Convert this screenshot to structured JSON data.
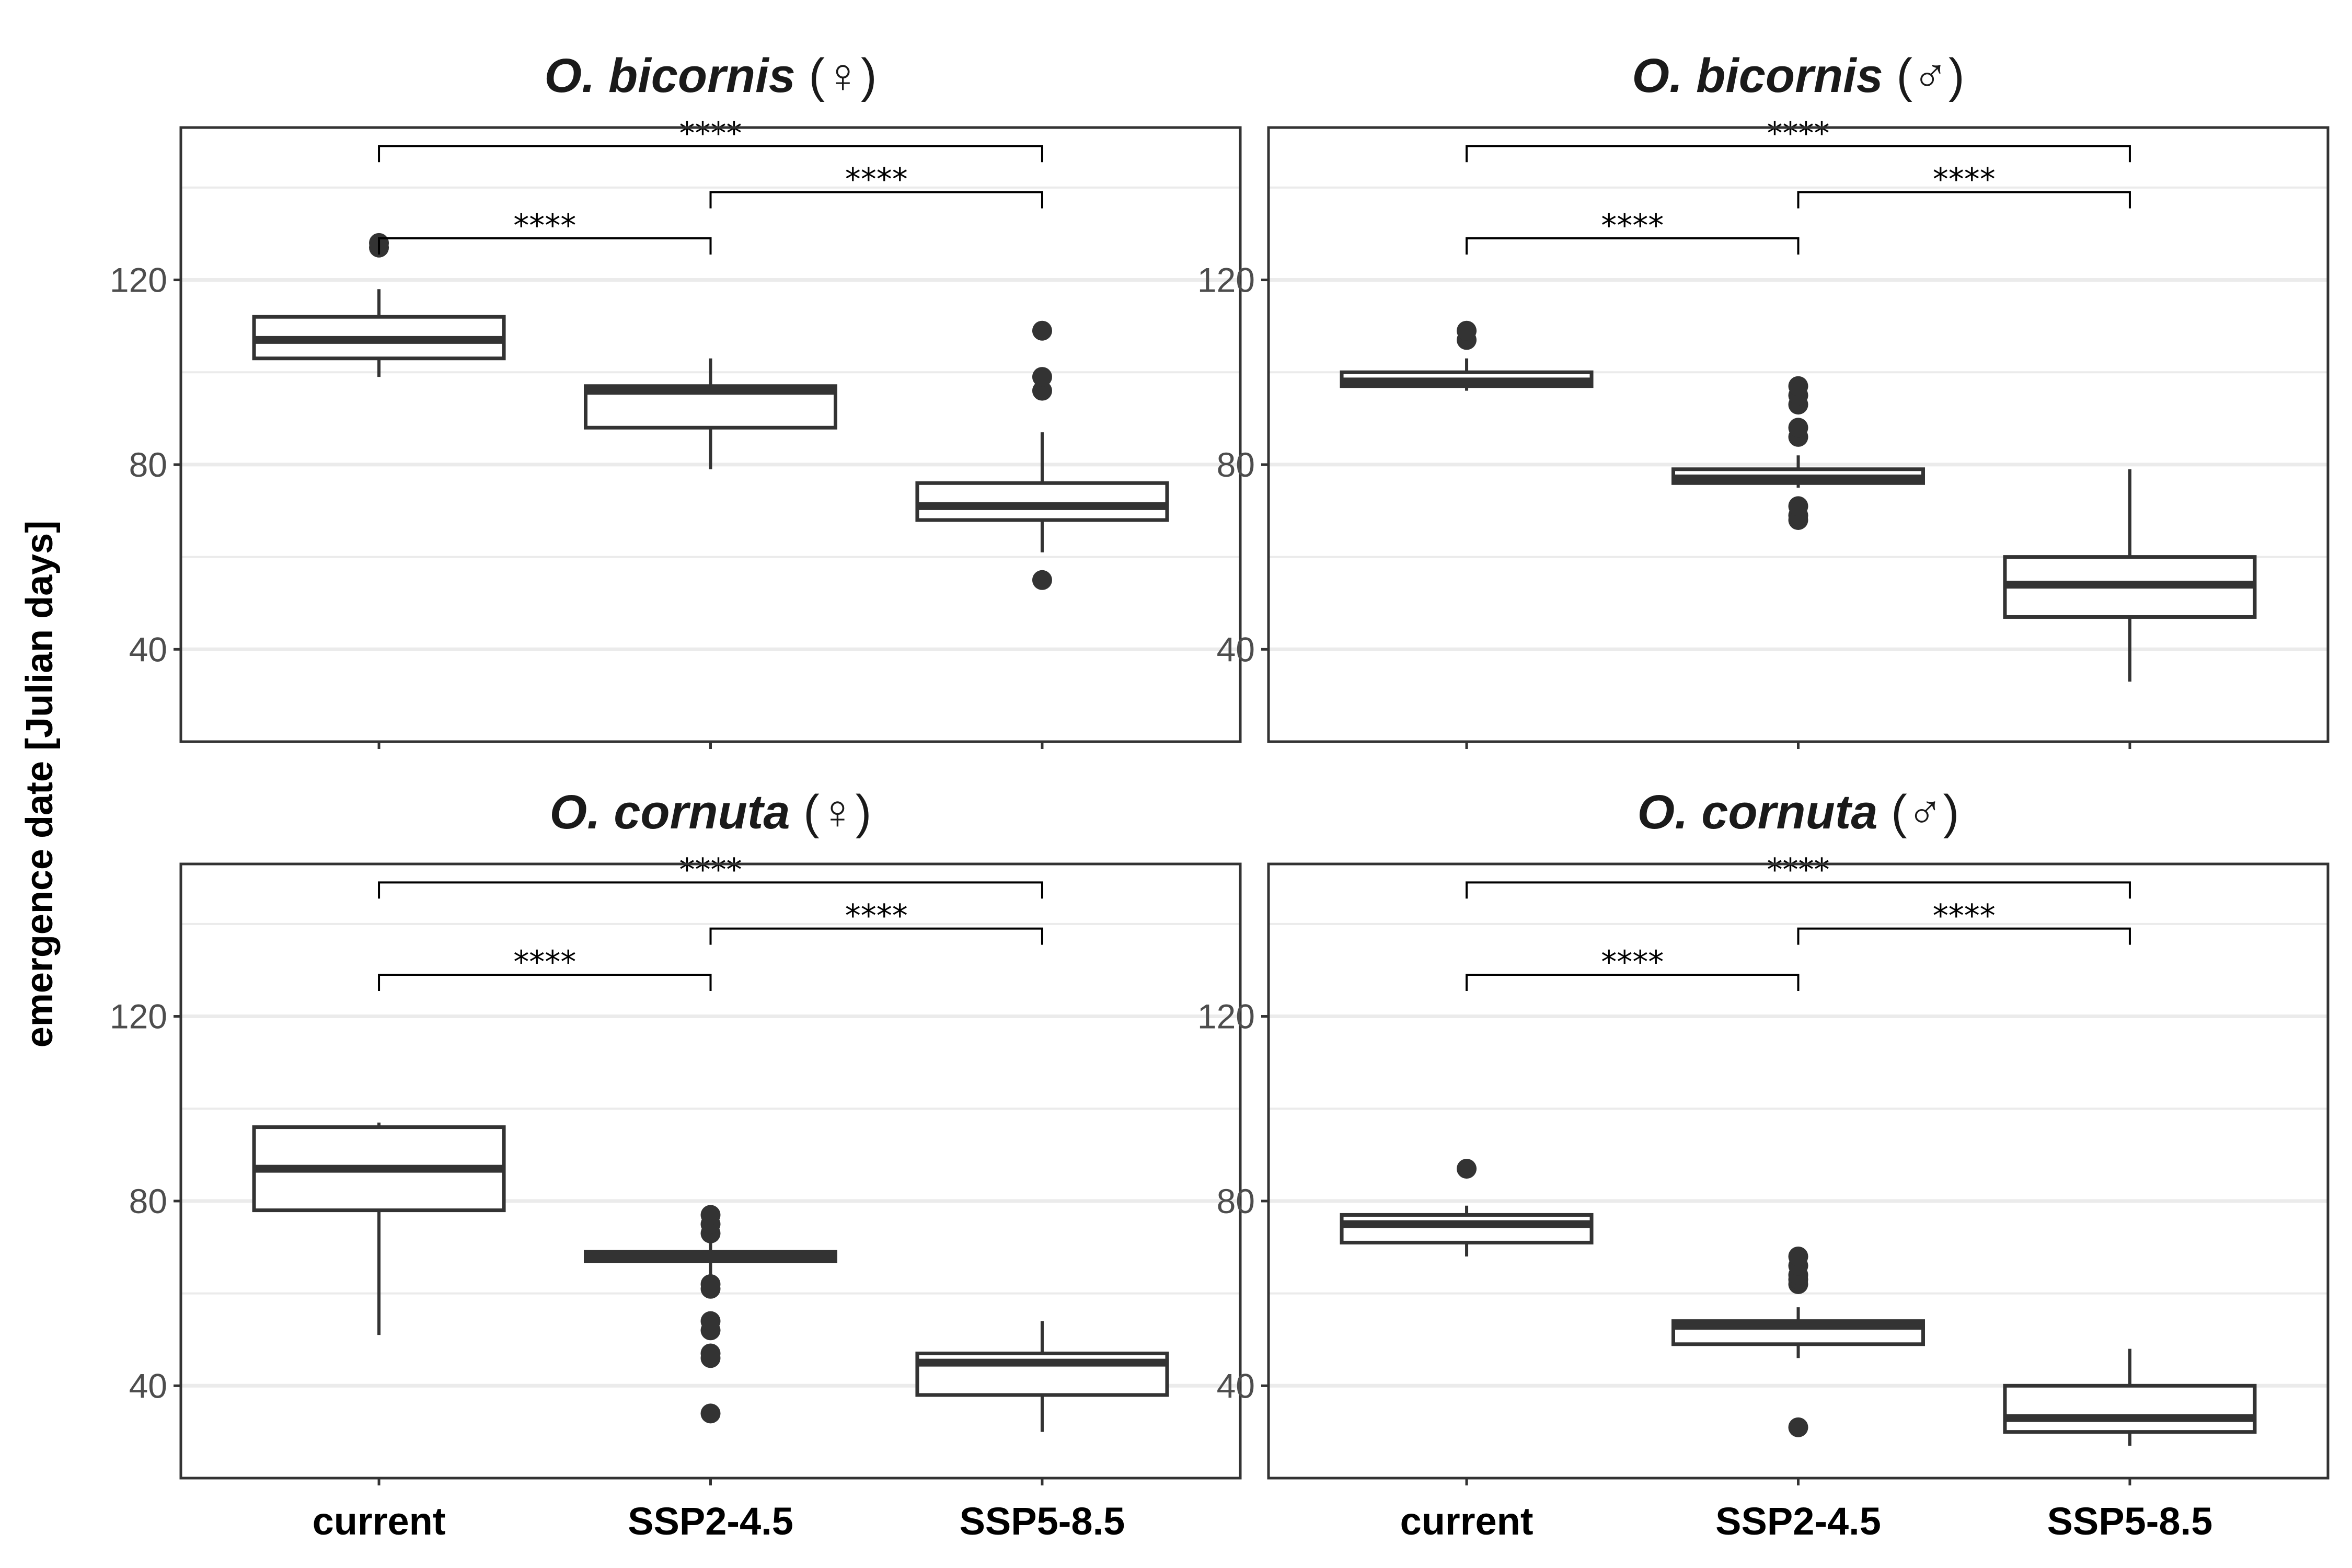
{
  "chart_data": {
    "type": "boxplot",
    "y_axis_title": "emergence date [Julian days]",
    "categories": [
      "current",
      "SSP2-4.5",
      "SSP5-8.5"
    ],
    "ylim": [
      20,
      153
    ],
    "y_ticks": [
      40,
      80,
      120
    ],
    "y_tick_labels": [
      "40",
      "80",
      "120"
    ],
    "grid": true,
    "colors": {
      "box": "#333333",
      "grid": "#ebebeb",
      "frame": "#333333",
      "text": "#000000"
    },
    "panels": [
      {
        "id": "ob-f",
        "species": "O. bicornis",
        "sex_symbol": "(♀)",
        "boxes": [
          {
            "category": "current",
            "q1": 103,
            "median": 107,
            "q3": 112,
            "whisker_low": 99,
            "whisker_high": 118,
            "outliers": [
              127,
              128
            ]
          },
          {
            "category": "SSP2-4.5",
            "q1": 88,
            "median": 96,
            "q3": 97,
            "whisker_low": 79,
            "whisker_high": 103,
            "outliers": []
          },
          {
            "category": "SSP5-8.5",
            "q1": 68,
            "median": 71,
            "q3": 76,
            "whisker_low": 61,
            "whisker_high": 87,
            "outliers": [
              55,
              96,
              99,
              109
            ]
          }
        ],
        "comparisons": [
          {
            "from": "current",
            "to": "SSP2-4.5",
            "label": "****",
            "level": 0
          },
          {
            "from": "SSP2-4.5",
            "to": "SSP5-8.5",
            "label": "****",
            "level": 1
          },
          {
            "from": "current",
            "to": "SSP5-8.5",
            "label": "****",
            "level": 2
          }
        ]
      },
      {
        "id": "ob-m",
        "species": "O. bicornis",
        "sex_symbol": "(♂)",
        "boxes": [
          {
            "category": "current",
            "q1": 97,
            "median": 98,
            "q3": 100,
            "whisker_low": 96,
            "whisker_high": 103,
            "outliers": [
              107,
              109
            ]
          },
          {
            "category": "SSP2-4.5",
            "q1": 76,
            "median": 77,
            "q3": 79,
            "whisker_low": 75,
            "whisker_high": 82,
            "outliers": [
              68,
              69,
              71,
              86,
              88,
              93,
              95,
              97
            ]
          },
          {
            "category": "SSP5-8.5",
            "q1": 47,
            "median": 54,
            "q3": 60,
            "whisker_low": 33,
            "whisker_high": 79,
            "outliers": []
          }
        ],
        "comparisons": [
          {
            "from": "current",
            "to": "SSP2-4.5",
            "label": "****",
            "level": 0
          },
          {
            "from": "SSP2-4.5",
            "to": "SSP5-8.5",
            "label": "****",
            "level": 1
          },
          {
            "from": "current",
            "to": "SSP5-8.5",
            "label": "****",
            "level": 2
          }
        ]
      },
      {
        "id": "oc-f",
        "species": "O. cornuta",
        "sex_symbol": "(♀)",
        "boxes": [
          {
            "category": "current",
            "q1": 78,
            "median": 87,
            "q3": 96,
            "whisker_low": 51,
            "whisker_high": 97,
            "outliers": []
          },
          {
            "category": "SSP2-4.5",
            "q1": 67,
            "median": 68,
            "q3": 69,
            "whisker_low": 64,
            "whisker_high": 71,
            "outliers": [
              34,
              46,
              47,
              52,
              54,
              61,
              62,
              73,
              75,
              77
            ]
          },
          {
            "category": "SSP5-8.5",
            "q1": 38,
            "median": 45,
            "q3": 47,
            "whisker_low": 30,
            "whisker_high": 54,
            "outliers": []
          }
        ],
        "comparisons": [
          {
            "from": "current",
            "to": "SSP2-4.5",
            "label": "****",
            "level": 0
          },
          {
            "from": "SSP2-4.5",
            "to": "SSP5-8.5",
            "label": "****",
            "level": 1
          },
          {
            "from": "current",
            "to": "SSP5-8.5",
            "label": "****",
            "level": 2
          }
        ]
      },
      {
        "id": "oc-m",
        "species": "O. cornuta",
        "sex_symbol": "(♂)",
        "boxes": [
          {
            "category": "current",
            "q1": 71,
            "median": 75,
            "q3": 77,
            "whisker_low": 68,
            "whisker_high": 79,
            "outliers": [
              87
            ]
          },
          {
            "category": "SSP2-4.5",
            "q1": 49,
            "median": 53,
            "q3": 54,
            "whisker_low": 46,
            "whisker_high": 57,
            "outliers": [
              31,
              62,
              63,
              64,
              66,
              68
            ]
          },
          {
            "category": "SSP5-8.5",
            "q1": 30,
            "median": 33,
            "q3": 40,
            "whisker_low": 27,
            "whisker_high": 48,
            "outliers": []
          }
        ],
        "comparisons": [
          {
            "from": "current",
            "to": "SSP2-4.5",
            "label": "****",
            "level": 0
          },
          {
            "from": "SSP2-4.5",
            "to": "SSP5-8.5",
            "label": "****",
            "level": 1
          },
          {
            "from": "current",
            "to": "SSP5-8.5",
            "label": "****",
            "level": 2
          }
        ]
      }
    ]
  }
}
